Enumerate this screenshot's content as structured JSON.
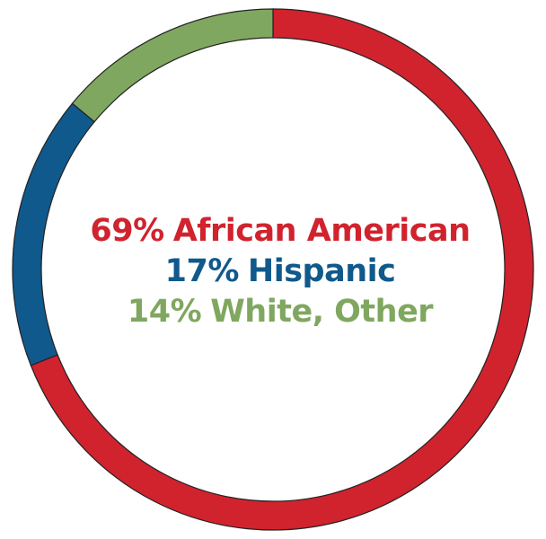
{
  "chart_data": {
    "type": "donut",
    "categories": [
      "African American",
      "Hispanic",
      "White, Other"
    ],
    "values": [
      69,
      17,
      14
    ],
    "value_labels": [
      "69%",
      "17%",
      "14%"
    ],
    "colors": [
      "#d0232e",
      "#10598c",
      "#80a75f"
    ]
  }
}
